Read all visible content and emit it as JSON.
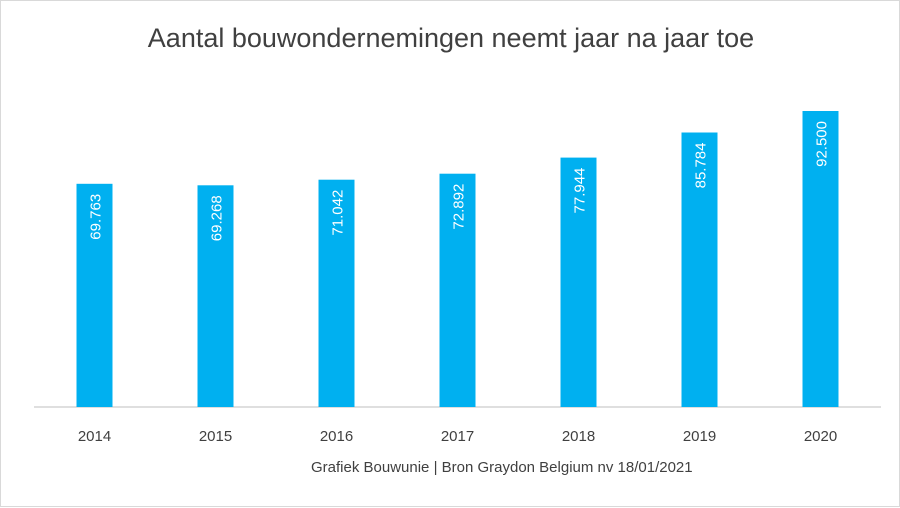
{
  "chart_data": {
    "type": "bar",
    "title": "Aantal bouwondernemingen neemt jaar na jaar toe",
    "categories": [
      "2014",
      "2015",
      "2016",
      "2017",
      "2018",
      "2019",
      "2020"
    ],
    "values": [
      69763,
      69268,
      71042,
      72892,
      77944,
      85784,
      92500
    ],
    "value_labels": [
      "69.763",
      "69.268",
      "71.042",
      "72.892",
      "77.944",
      "85.784",
      "92.500"
    ],
    "ylim": [
      0,
      100000
    ],
    "grid": false,
    "bar_color": "#00b0f0",
    "source": "Grafiek Bouwunie | Bron Graydon Belgium nv 18/01/2021"
  }
}
